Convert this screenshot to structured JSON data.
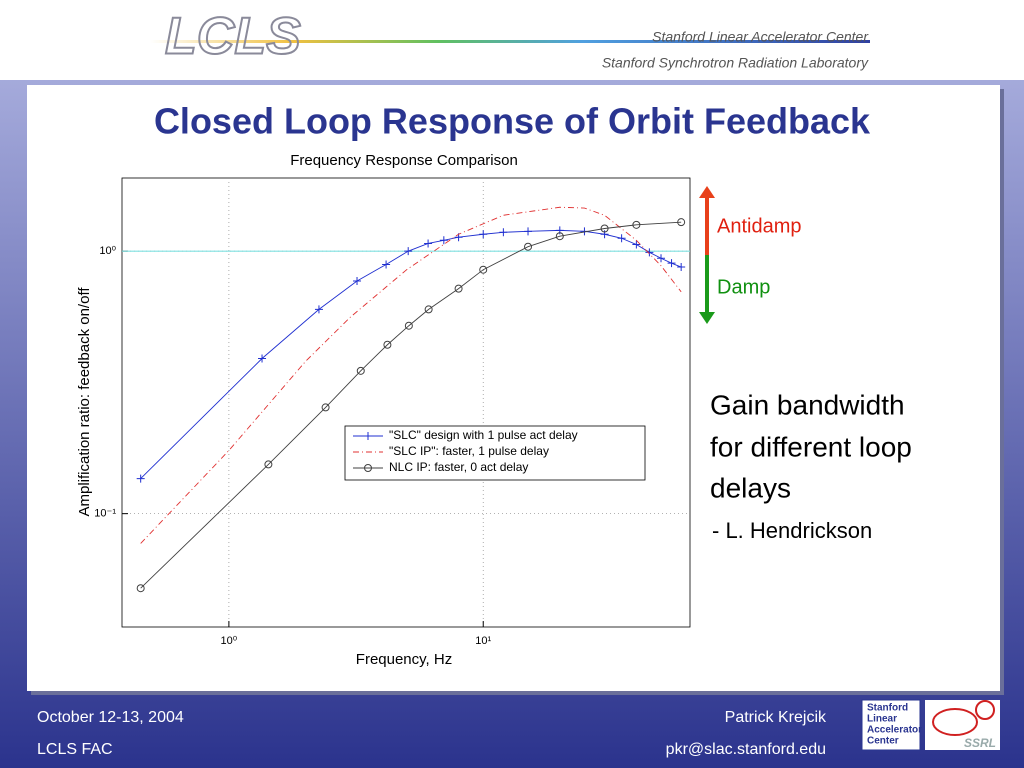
{
  "header": {
    "logo": "LCLS",
    "org1": "Stanford Linear Accelerator Center",
    "org2": "Stanford Synchrotron Radiation Laboratory"
  },
  "slide_title": "Closed Loop Response of Orbit Feedback",
  "chart_data": {
    "type": "line",
    "title": "Frequency Response Comparison",
    "x_label": "Frequency, Hz",
    "y_label": "Amplification ratio: feedback on/off",
    "xlog": true,
    "ylog": true,
    "grid": true,
    "legend": "lower right",
    "xlim": [
      0.38,
      65
    ],
    "ylim": [
      0.037,
      1.9
    ],
    "xticks": [
      {
        "value": 1,
        "label": "10⁰"
      },
      {
        "value": 10,
        "label": "10¹"
      }
    ],
    "yticks": [
      {
        "value": 0.1,
        "label": "10⁻¹"
      },
      {
        "value": 1,
        "label": "10⁰"
      }
    ],
    "reference_line": {
      "value": 1,
      "color": "#7fe0e0"
    },
    "series": [
      {
        "name": "\"SLC\" design with 1 pulse act delay",
        "color": "#1f2fd0",
        "marker": "plus",
        "linestyle": "solid",
        "x": [
          0.45,
          1.35,
          2.26,
          3.19,
          4.15,
          5.07,
          6.07,
          7,
          8,
          10,
          12,
          15,
          20,
          25,
          30,
          35,
          40,
          45,
          50,
          55,
          60
        ],
        "values": [
          0.136,
          0.39,
          0.6,
          0.77,
          0.89,
          1.0,
          1.07,
          1.1,
          1.13,
          1.16,
          1.18,
          1.19,
          1.2,
          1.19,
          1.16,
          1.12,
          1.06,
          0.99,
          0.94,
          0.9,
          0.87
        ]
      },
      {
        "name": "\"SLC IP\": faster, 1 pulse delay",
        "color": "#e03030",
        "marker": "none",
        "linestyle": "dashdot",
        "x": [
          0.45,
          1,
          2,
          3,
          5,
          8,
          12,
          20,
          25,
          30,
          40,
          50,
          60
        ],
        "values": [
          0.077,
          0.174,
          0.38,
          0.56,
          0.85,
          1.16,
          1.37,
          1.47,
          1.46,
          1.37,
          1.1,
          0.88,
          0.7
        ]
      },
      {
        "name": "NLC IP: faster, 0 act delay",
        "color": "#404040",
        "marker": "circle",
        "linestyle": "solid",
        "x": [
          0.45,
          1.43,
          2.4,
          3.3,
          4.2,
          5.1,
          6.1,
          8,
          10,
          15,
          20,
          30,
          40,
          60
        ],
        "values": [
          0.052,
          0.154,
          0.254,
          0.35,
          0.44,
          0.52,
          0.6,
          0.72,
          0.85,
          1.04,
          1.14,
          1.22,
          1.26,
          1.29
        ]
      }
    ]
  },
  "annotations": {
    "antidamp": "Antidamp",
    "damp": "Damp"
  },
  "side_text": {
    "lines": [
      "Gain bandwidth",
      "for different loop",
      "delays"
    ],
    "credit": "- L. Hendrickson"
  },
  "footer": {
    "date": "October 12-13, 2004",
    "event": "LCLS FAC",
    "author": "Patrick Krejcik",
    "email": "pkr@slac.stanford.edu",
    "logo_lines": [
      "Stanford",
      "Linear",
      "Accelerator",
      "Center"
    ],
    "logo2": "SSRL"
  }
}
